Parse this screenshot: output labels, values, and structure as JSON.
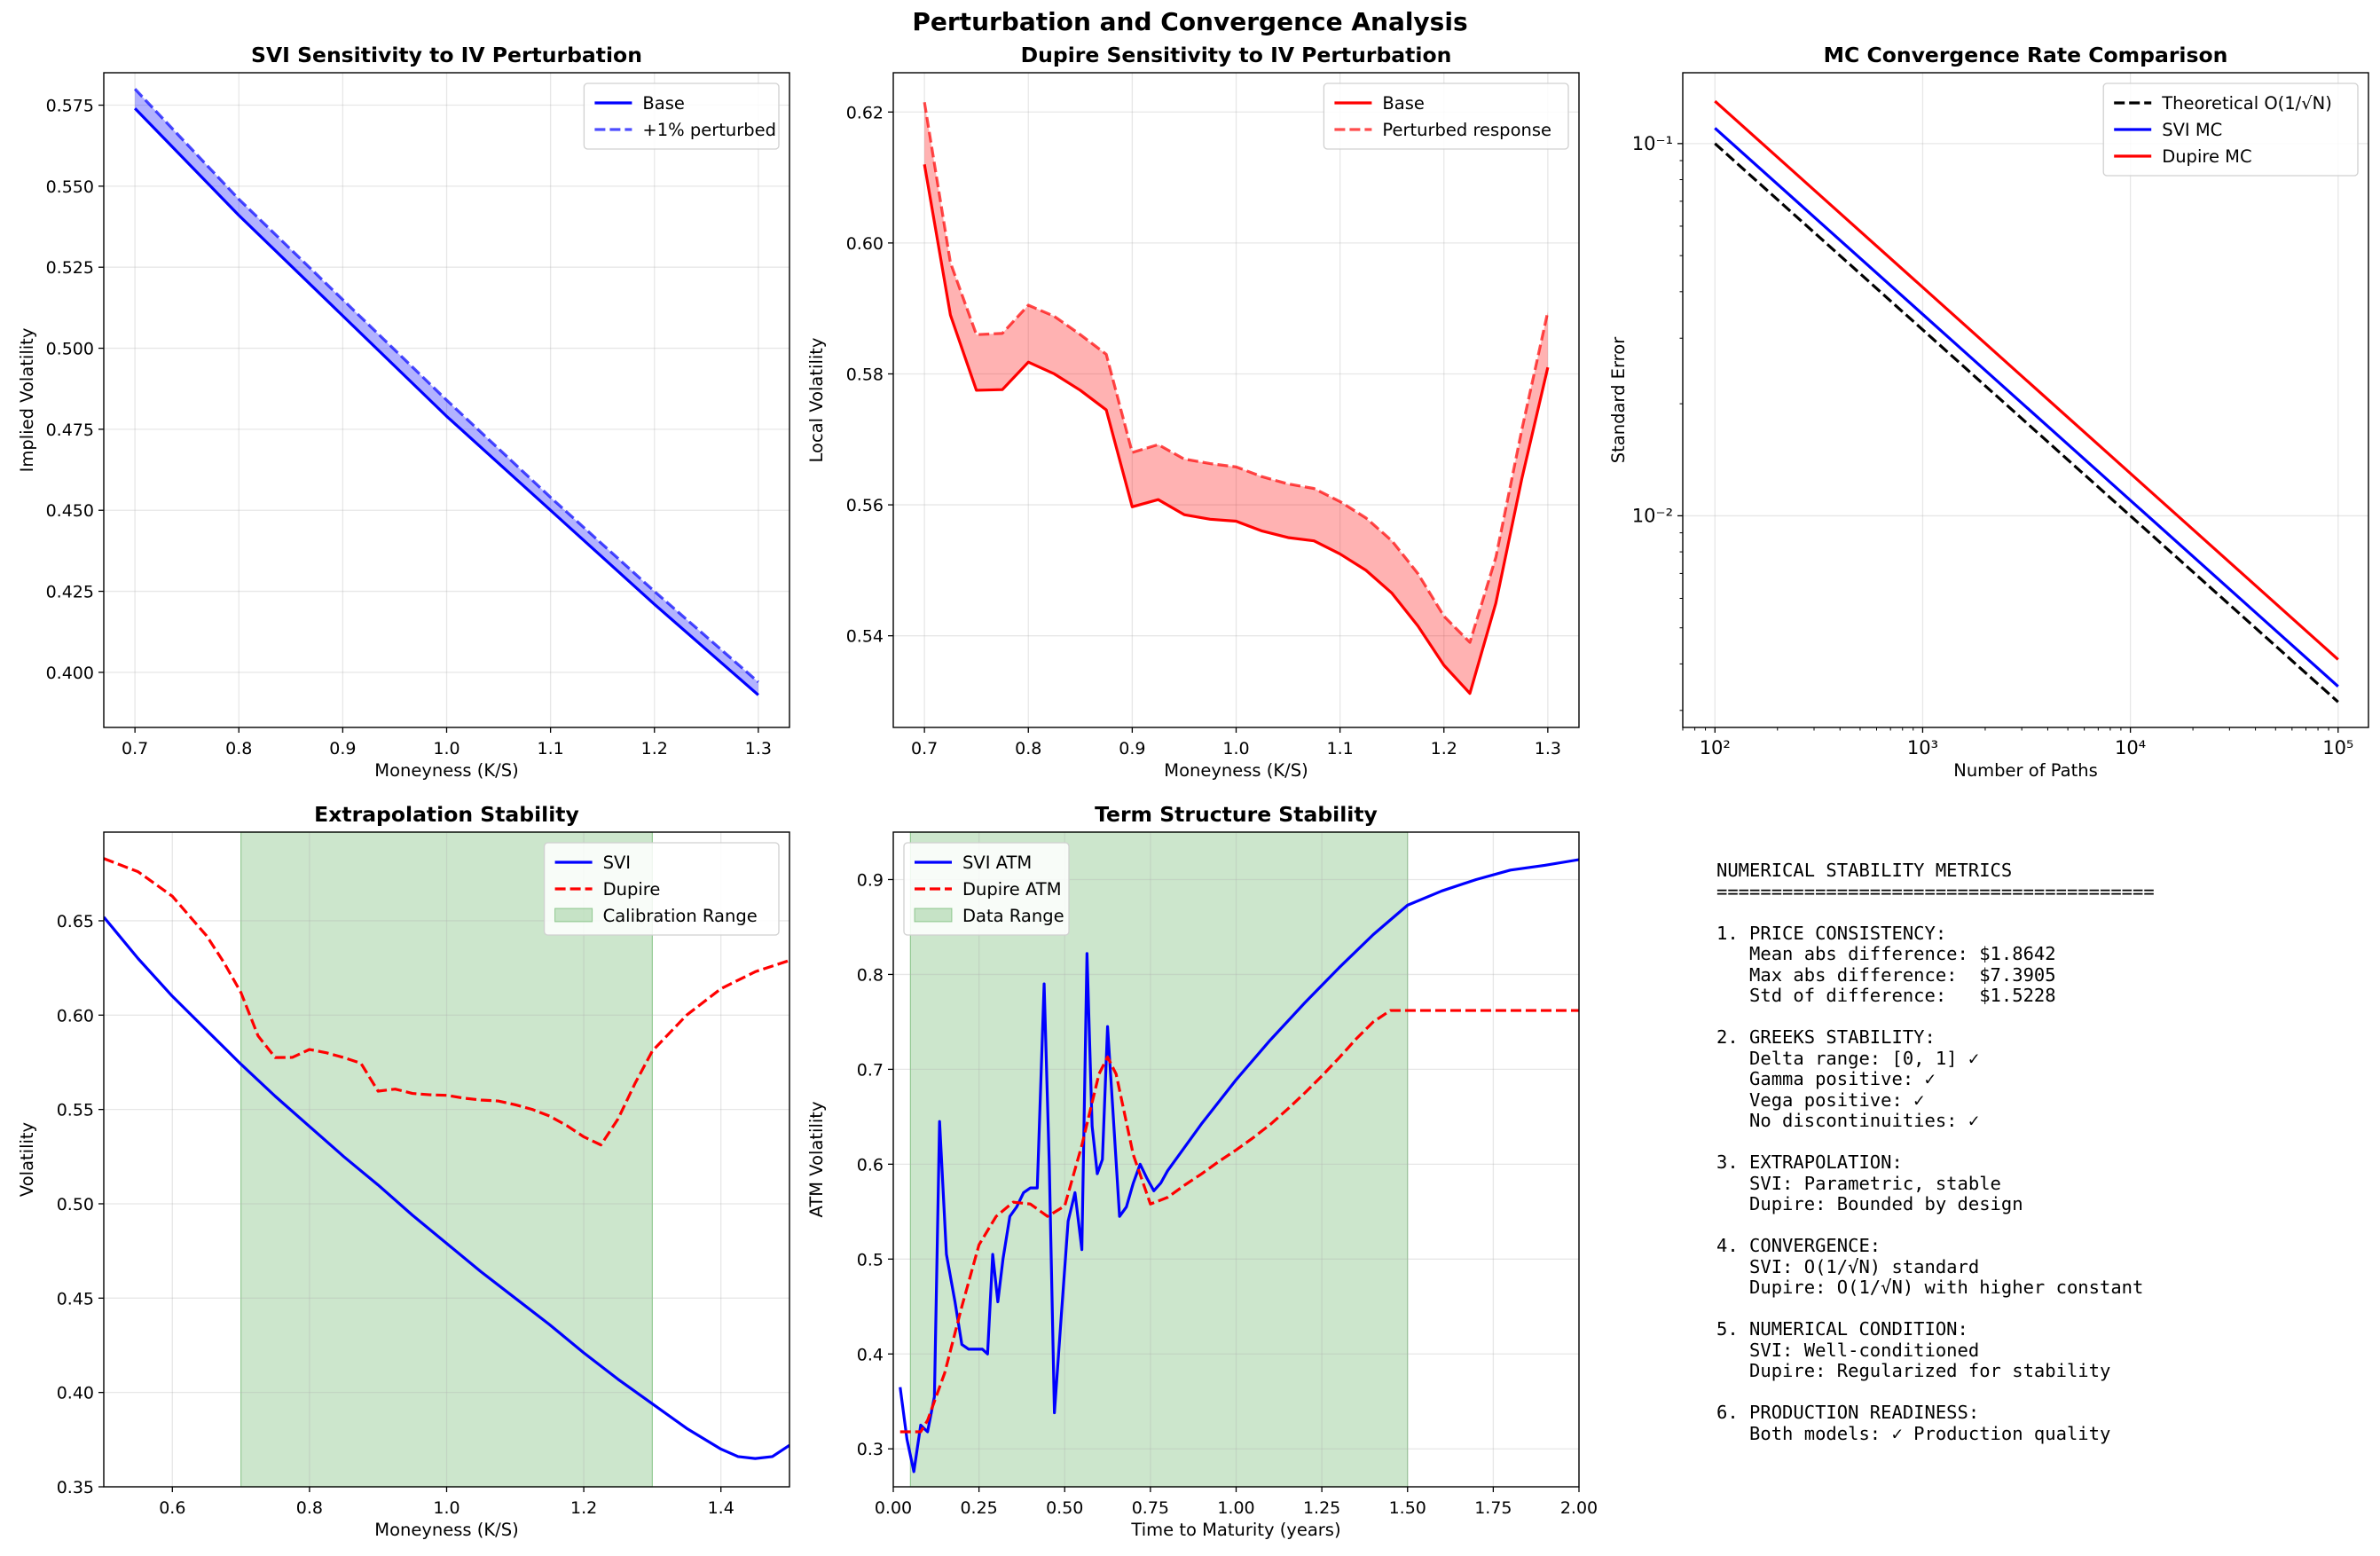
{
  "suptitle": "Perturbation and Convergence Analysis",
  "text_panel": {
    "lines": [
      "NUMERICAL STABILITY METRICS",
      "========================================",
      "",
      "1. PRICE CONSISTENCY:",
      "   Mean abs difference: $1.8642",
      "   Max abs difference:  $7.3905",
      "   Std of difference:   $1.5228",
      "",
      "2. GREEKS STABILITY:",
      "   Delta range: [0, 1] ✓",
      "   Gamma positive: ✓",
      "   Vega positive: ✓",
      "   No discontinuities: ✓",
      "",
      "3. EXTRAPOLATION:",
      "   SVI: Parametric, stable",
      "   Dupire: Bounded by design",
      "",
      "4. CONVERGENCE:",
      "   SVI: O(1/√N) standard",
      "   Dupire: O(1/√N) with higher constant",
      "",
      "5. NUMERICAL CONDITION:",
      "   SVI: Well-conditioned",
      "   Dupire: Regularized for stability",
      "",
      "6. PRODUCTION READINESS:",
      "   Both models: ✓ Production quality"
    ]
  },
  "chart_data": [
    {
      "id": "svi-sensitivity",
      "type": "line",
      "title": "SVI Sensitivity to IV Perturbation",
      "xlabel": "Moneyness (K/S)",
      "ylabel": "Implied Volatility",
      "xlim": [
        0.67,
        1.33
      ],
      "ylim": [
        0.383,
        0.585
      ],
      "xticks": [
        0.7,
        0.8,
        0.9,
        1.0,
        1.1,
        1.2,
        1.3
      ],
      "xtick_labels": [
        "0.7",
        "0.8",
        "0.9",
        "1.0",
        "1.1",
        "1.2",
        "1.3"
      ],
      "yticks": [
        0.4,
        0.425,
        0.45,
        0.475,
        0.5,
        0.525,
        0.55,
        0.575
      ],
      "ytick_labels": [
        "0.400",
        "0.425",
        "0.450",
        "0.475",
        "0.500",
        "0.525",
        "0.550",
        "0.575"
      ],
      "legend": "upper-right",
      "fill": {
        "between": [
          0,
          1
        ],
        "color": "#0000ff",
        "alpha": 0.3
      },
      "series": [
        {
          "name": "Base",
          "color": "#0000ff",
          "dash": "solid",
          "width": 3.2,
          "x": [
            0.7,
            0.8,
            0.9,
            1.0,
            1.1,
            1.2,
            1.3
          ],
          "y": [
            0.574,
            0.541,
            0.51,
            0.479,
            0.45,
            0.421,
            0.393
          ]
        },
        {
          "name": "+1% perturbed",
          "color": "#0000ff",
          "dash": "dashed",
          "width": 3.2,
          "alpha": 0.7,
          "x": [
            0.7,
            0.8,
            0.9,
            1.0,
            1.1,
            1.2,
            1.3
          ],
          "y": [
            0.58,
            0.546,
            0.515,
            0.484,
            0.454,
            0.425,
            0.397
          ]
        }
      ]
    },
    {
      "id": "dupire-sensitivity",
      "type": "line",
      "title": "Dupire Sensitivity to IV Perturbation",
      "xlabel": "Moneyness (K/S)",
      "ylabel": "Local Volatility",
      "xlim": [
        0.67,
        1.33
      ],
      "ylim": [
        0.526,
        0.626
      ],
      "xticks": [
        0.7,
        0.8,
        0.9,
        1.0,
        1.1,
        1.2,
        1.3
      ],
      "xtick_labels": [
        "0.7",
        "0.8",
        "0.9",
        "1.0",
        "1.1",
        "1.2",
        "1.3"
      ],
      "yticks": [
        0.54,
        0.56,
        0.58,
        0.6,
        0.62
      ],
      "ytick_labels": [
        "0.54",
        "0.56",
        "0.58",
        "0.60",
        "0.62"
      ],
      "legend": "upper-right",
      "fill": {
        "between": [
          0,
          1
        ],
        "color": "#ff0000",
        "alpha": 0.3
      },
      "series": [
        {
          "name": "Base",
          "color": "#ff0000",
          "dash": "solid",
          "width": 3.2,
          "x": [
            0.7,
            0.725,
            0.75,
            0.775,
            0.8,
            0.825,
            0.85,
            0.875,
            0.9,
            0.925,
            0.95,
            0.975,
            1.0,
            1.025,
            1.05,
            1.075,
            1.1,
            1.125,
            1.15,
            1.175,
            1.2,
            1.225,
            1.25,
            1.275,
            1.3
          ],
          "y": [
            0.612,
            0.589,
            0.5775,
            0.5776,
            0.5818,
            0.58,
            0.5775,
            0.5745,
            0.5597,
            0.5608,
            0.5585,
            0.5578,
            0.5575,
            0.556,
            0.555,
            0.5545,
            0.5525,
            0.55,
            0.5465,
            0.5415,
            0.5355,
            0.5312,
            0.545,
            0.564,
            0.581
          ]
        },
        {
          "name": "Perturbed response",
          "color": "#ff0000",
          "dash": "dashed",
          "width": 3.2,
          "alpha": 0.7,
          "x": [
            0.7,
            0.725,
            0.75,
            0.775,
            0.8,
            0.825,
            0.85,
            0.875,
            0.9,
            0.925,
            0.95,
            0.975,
            1.0,
            1.025,
            1.05,
            1.075,
            1.1,
            1.125,
            1.15,
            1.175,
            1.2,
            1.225,
            1.25,
            1.275,
            1.3
          ],
          "y": [
            0.6215,
            0.597,
            0.586,
            0.5862,
            0.5905,
            0.5888,
            0.586,
            0.583,
            0.568,
            0.5692,
            0.567,
            0.5663,
            0.5658,
            0.5643,
            0.5632,
            0.5625,
            0.5605,
            0.558,
            0.5545,
            0.5495,
            0.543,
            0.539,
            0.552,
            0.5715,
            0.5895
          ]
        }
      ]
    },
    {
      "id": "mc-convergence",
      "type": "line",
      "scale": "loglog",
      "title": "MC Convergence Rate Comparison",
      "xlabel": "Number of Paths",
      "ylabel": "Standard Error",
      "xlim": [
        70,
        140000
      ],
      "ylim": [
        0.0027,
        0.155
      ],
      "xticks": [
        100,
        1000,
        10000,
        100000
      ],
      "xtick_labels": [
        "10²",
        "10³",
        "10⁴",
        "10⁵"
      ],
      "yticks": [
        0.01,
        0.1
      ],
      "ytick_labels": [
        "10⁻²",
        "10⁻¹"
      ],
      "legend": "upper-right",
      "series": [
        {
          "name": "Theoretical O(1/√N)",
          "color": "#000000",
          "dash": "dashed",
          "width": 3.2,
          "x": [
            100,
            100000
          ],
          "y": [
            0.1,
            0.00316
          ]
        },
        {
          "name": "SVI MC",
          "color": "#0000ff",
          "dash": "solid",
          "width": 3.2,
          "x": [
            100,
            100000
          ],
          "y": [
            0.11,
            0.00348
          ]
        },
        {
          "name": "Dupire MC",
          "color": "#ff0000",
          "dash": "solid",
          "width": 3.2,
          "x": [
            100,
            100000
          ],
          "y": [
            0.13,
            0.00411
          ]
        }
      ]
    },
    {
      "id": "extrapolation",
      "type": "line",
      "title": "Extrapolation Stability",
      "xlabel": "Moneyness (K/S)",
      "ylabel": "Volatility",
      "xlim": [
        0.5,
        1.5
      ],
      "ylim": [
        0.35,
        0.697
      ],
      "xticks": [
        0.6,
        0.8,
        1.0,
        1.2,
        1.4
      ],
      "xtick_labels": [
        "0.6",
        "0.8",
        "1.0",
        "1.2",
        "1.4"
      ],
      "yticks": [
        0.35,
        0.4,
        0.45,
        0.5,
        0.55,
        0.6,
        0.65
      ],
      "ytick_labels": [
        "0.35",
        "0.40",
        "0.45",
        "0.50",
        "0.55",
        "0.60",
        "0.65"
      ],
      "legend": "upper-right",
      "span": {
        "name": "Calibration Range",
        "from": 0.7,
        "to": 1.3,
        "color": "#008000",
        "alpha": 0.2
      },
      "series": [
        {
          "name": "SVI",
          "color": "#0000ff",
          "dash": "solid",
          "width": 3.2,
          "x": [
            0.5,
            0.55,
            0.6,
            0.65,
            0.7,
            0.75,
            0.8,
            0.85,
            0.9,
            0.95,
            1.0,
            1.05,
            1.1,
            1.15,
            1.2,
            1.25,
            1.3,
            1.35,
            1.4,
            1.425,
            1.45,
            1.475,
            1.5
          ],
          "y": [
            0.652,
            0.63,
            0.61,
            0.592,
            0.574,
            0.557,
            0.541,
            0.525,
            0.51,
            0.494,
            0.479,
            0.464,
            0.45,
            0.436,
            0.421,
            0.407,
            0.394,
            0.381,
            0.37,
            0.366,
            0.365,
            0.366,
            0.372
          ]
        },
        {
          "name": "Dupire",
          "color": "#ff0000",
          "dash": "dashed",
          "width": 3.2,
          "x": [
            0.5,
            0.55,
            0.6,
            0.65,
            0.675,
            0.7,
            0.725,
            0.75,
            0.775,
            0.8,
            0.825,
            0.85,
            0.875,
            0.9,
            0.925,
            0.95,
            0.975,
            1.0,
            1.025,
            1.05,
            1.075,
            1.1,
            1.125,
            1.15,
            1.175,
            1.2,
            1.225,
            1.25,
            1.275,
            1.3,
            1.35,
            1.4,
            1.45,
            1.5
          ],
          "y": [
            0.683,
            0.676,
            0.663,
            0.642,
            0.628,
            0.612,
            0.589,
            0.5775,
            0.5776,
            0.5818,
            0.58,
            0.5775,
            0.5745,
            0.5597,
            0.5608,
            0.5585,
            0.5578,
            0.5575,
            0.556,
            0.555,
            0.5545,
            0.5525,
            0.55,
            0.5465,
            0.5415,
            0.5355,
            0.5312,
            0.545,
            0.564,
            0.581,
            0.6,
            0.614,
            0.623,
            0.629
          ]
        }
      ]
    },
    {
      "id": "term-structure",
      "type": "line",
      "title": "Term Structure Stability",
      "xlabel": "Time to Maturity (years)",
      "ylabel": "ATM Volatility",
      "xlim": [
        0.0,
        2.0
      ],
      "ylim": [
        0.26,
        0.95
      ],
      "xticks": [
        0.0,
        0.25,
        0.5,
        0.75,
        1.0,
        1.25,
        1.5,
        1.75,
        2.0
      ],
      "xtick_labels": [
        "0.00",
        "0.25",
        "0.50",
        "0.75",
        "1.00",
        "1.25",
        "1.50",
        "1.75",
        "2.00"
      ],
      "yticks": [
        0.3,
        0.4,
        0.5,
        0.6,
        0.7,
        0.8,
        0.9
      ],
      "ytick_labels": [
        "0.3",
        "0.4",
        "0.5",
        "0.6",
        "0.7",
        "0.8",
        "0.9"
      ],
      "legend": "upper-left",
      "span": {
        "name": "Data Range",
        "from": 0.05,
        "to": 1.5,
        "color": "#008000",
        "alpha": 0.2
      },
      "series": [
        {
          "name": "SVI ATM",
          "color": "#0000ff",
          "dash": "solid",
          "width": 3.2,
          "x": [
            0.02,
            0.04,
            0.06,
            0.08,
            0.1,
            0.12,
            0.135,
            0.155,
            0.18,
            0.2,
            0.22,
            0.24,
            0.26,
            0.275,
            0.29,
            0.305,
            0.32,
            0.34,
            0.36,
            0.38,
            0.4,
            0.42,
            0.44,
            0.455,
            0.47,
            0.49,
            0.51,
            0.53,
            0.55,
            0.565,
            0.58,
            0.595,
            0.61,
            0.625,
            0.64,
            0.66,
            0.68,
            0.7,
            0.72,
            0.74,
            0.76,
            0.78,
            0.8,
            0.9,
            1.0,
            1.1,
            1.2,
            1.3,
            1.4,
            1.5,
            1.6,
            1.7,
            1.8,
            1.9,
            2.0
          ],
          "y": [
            0.365,
            0.31,
            0.276,
            0.325,
            0.318,
            0.355,
            0.645,
            0.505,
            0.455,
            0.41,
            0.405,
            0.405,
            0.405,
            0.4,
            0.505,
            0.455,
            0.5,
            0.545,
            0.555,
            0.57,
            0.575,
            0.575,
            0.79,
            0.6,
            0.338,
            0.44,
            0.54,
            0.57,
            0.51,
            0.822,
            0.64,
            0.59,
            0.605,
            0.745,
            0.66,
            0.545,
            0.555,
            0.58,
            0.6,
            0.585,
            0.572,
            0.58,
            0.593,
            0.643,
            0.689,
            0.731,
            0.77,
            0.807,
            0.842,
            0.873,
            0.888,
            0.9,
            0.91,
            0.915,
            0.921
          ]
        },
        {
          "name": "Dupire ATM",
          "color": "#ff0000",
          "dash": "dashed",
          "width": 3.2,
          "x": [
            0.02,
            0.05,
            0.08,
            0.1,
            0.12,
            0.15,
            0.2,
            0.25,
            0.3,
            0.35,
            0.4,
            0.45,
            0.5,
            0.55,
            0.6,
            0.625,
            0.65,
            0.7,
            0.75,
            0.8,
            0.85,
            0.9,
            0.95,
            1.0,
            1.05,
            1.1,
            1.15,
            1.2,
            1.25,
            1.3,
            1.35,
            1.4,
            1.45,
            1.5,
            1.75,
            2.0
          ],
          "y": [
            0.318,
            0.318,
            0.318,
            0.33,
            0.35,
            0.38,
            0.45,
            0.515,
            0.545,
            0.56,
            0.558,
            0.545,
            0.556,
            0.62,
            0.695,
            0.713,
            0.695,
            0.61,
            0.558,
            0.565,
            0.578,
            0.59,
            0.603,
            0.615,
            0.628,
            0.642,
            0.658,
            0.675,
            0.693,
            0.712,
            0.732,
            0.75,
            0.762,
            0.762,
            0.762,
            0.762
          ]
        }
      ]
    }
  ]
}
